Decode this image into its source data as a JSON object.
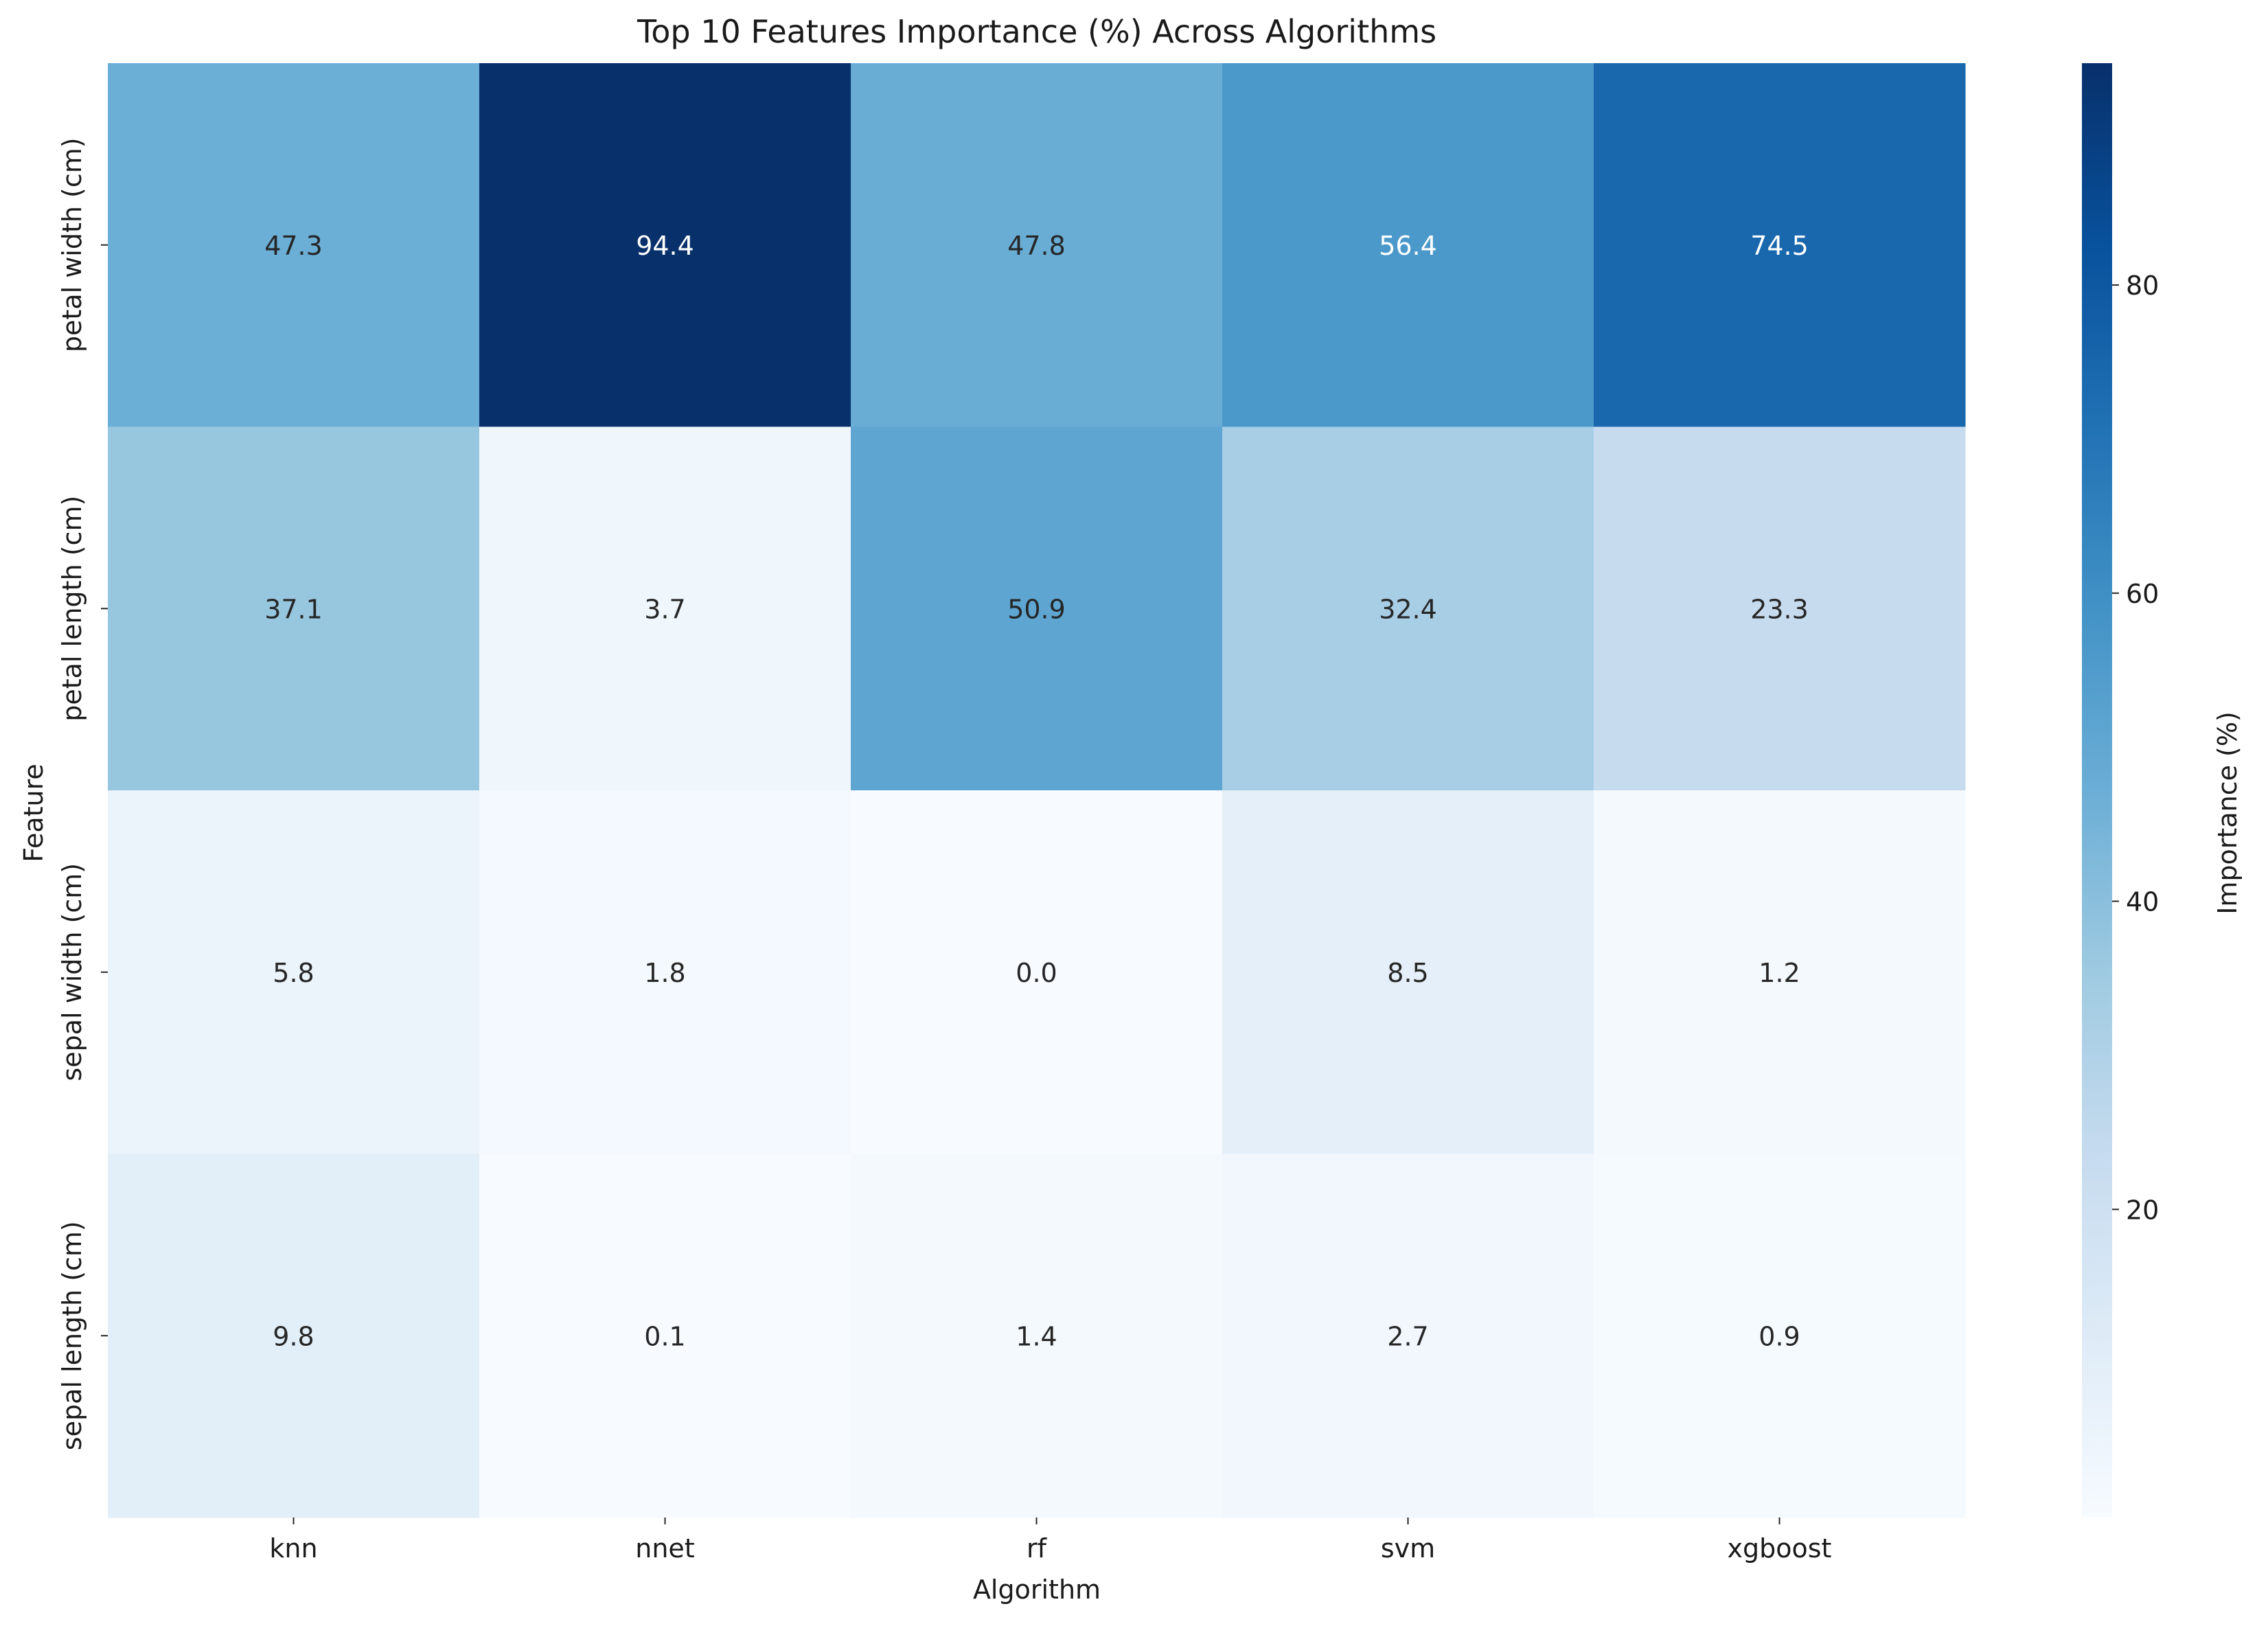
{
  "chart_data": {
    "type": "heatmap",
    "title": "Top 10 Features Importance (%) Across Algorithms",
    "xlabel": "Algorithm",
    "ylabel": "Feature",
    "x_categories": [
      "knn",
      "nnet",
      "rf",
      "svm",
      "xgboost"
    ],
    "y_categories": [
      "petal width (cm)",
      "petal length (cm)",
      "sepal width (cm)",
      "sepal length (cm)"
    ],
    "values": [
      [
        47.3,
        94.4,
        47.8,
        56.4,
        74.5
      ],
      [
        37.1,
        3.7,
        50.9,
        32.4,
        23.3
      ],
      [
        5.8,
        1.8,
        0.0,
        8.5,
        1.2
      ],
      [
        9.8,
        0.1,
        1.4,
        2.7,
        0.9
      ]
    ],
    "value_format": "0.1f",
    "colorbar": {
      "label": "Importance (%)",
      "range": [
        0.0,
        94.4
      ],
      "ticks": [
        20,
        40,
        60,
        80
      ],
      "colormap": "Blues",
      "colors": [
        "#f7fbff",
        "#deebf7",
        "#c6dbef",
        "#9ecae1",
        "#6baed6",
        "#4292c6",
        "#2171b5",
        "#08519c",
        "#08306b"
      ]
    },
    "annotation_text_colors": {
      "light": "#ffffff",
      "dark": "#262626"
    }
  }
}
